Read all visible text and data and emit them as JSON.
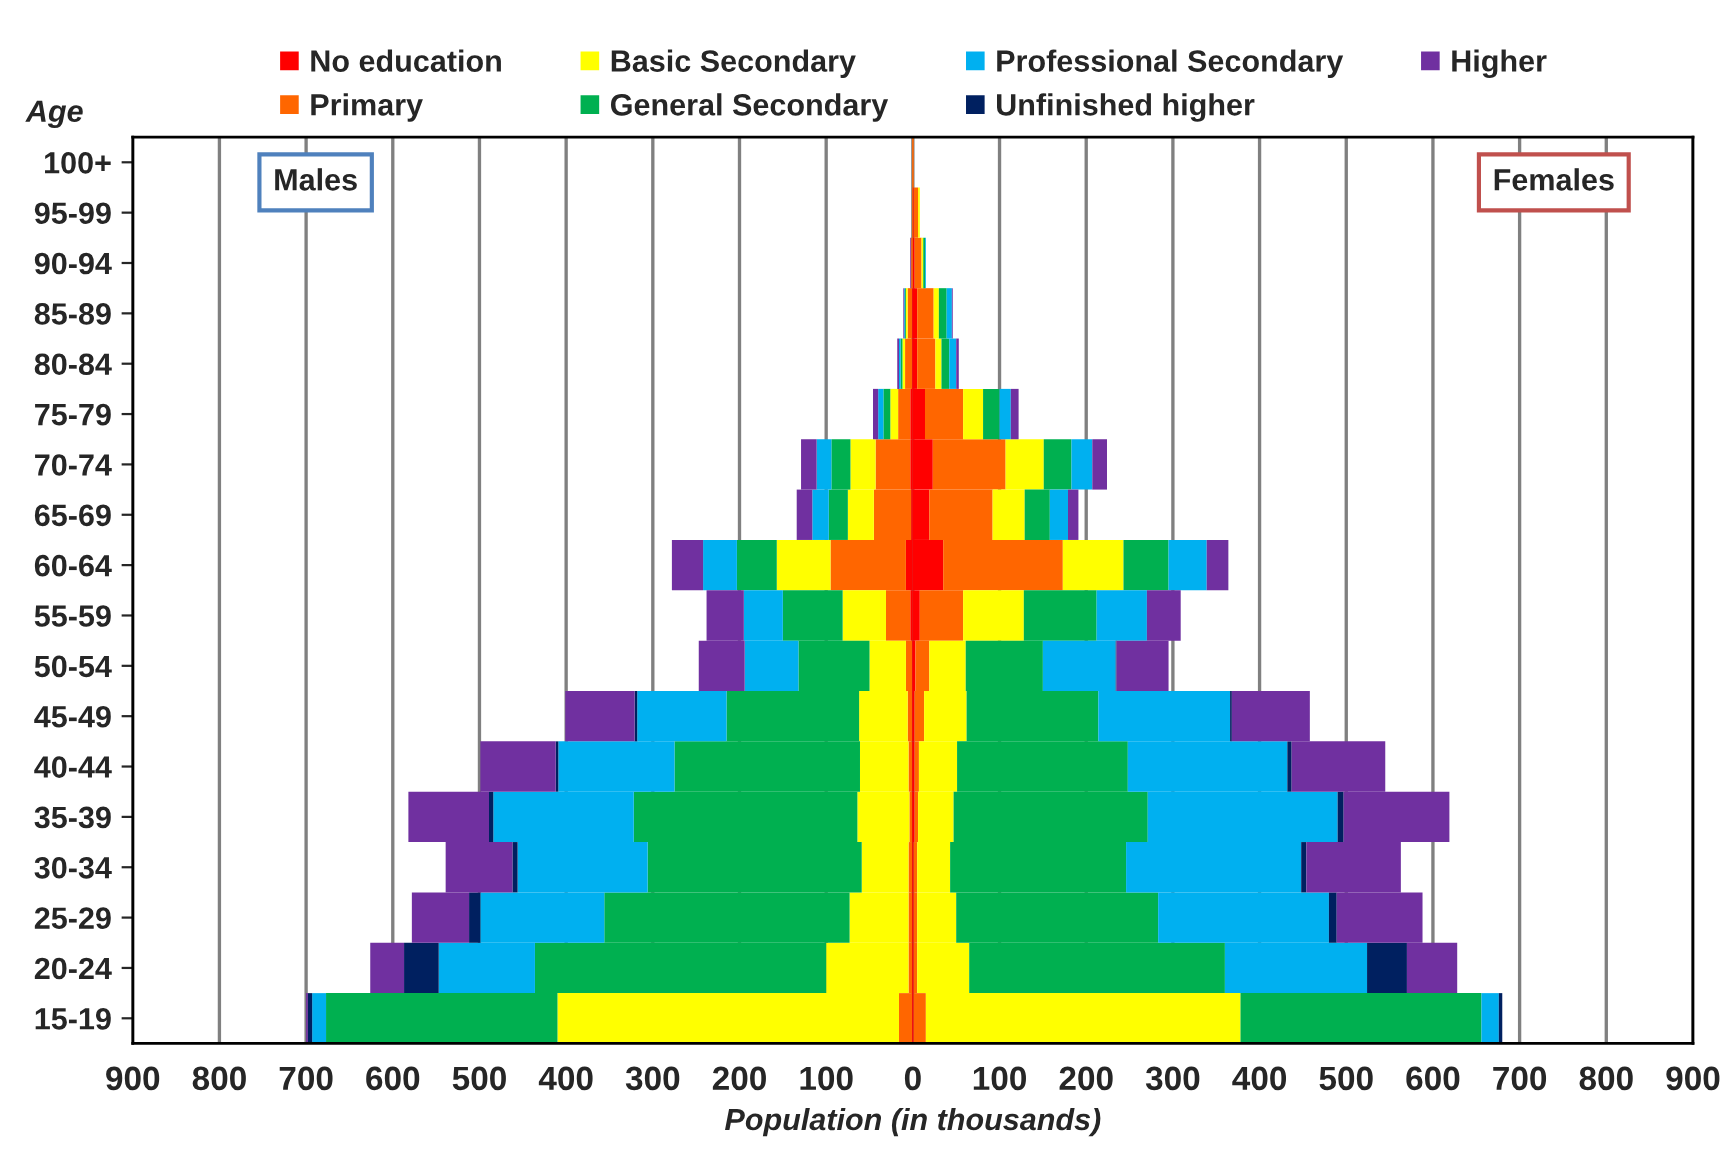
{
  "chart_data": {
    "type": "bar",
    "orientation": "horizontal",
    "stacked": true,
    "xlabel": "Population (in thousands)",
    "ylabel": "Age",
    "categories": [
      "100+",
      "95-99",
      "90-94",
      "85-89",
      "80-84",
      "75-79",
      "70-74",
      "65-69",
      "60-64",
      "55-59",
      "50-54",
      "45-49",
      "40-44",
      "35-39",
      "30-34",
      "25-29",
      "20-24",
      "15-19"
    ],
    "series": [
      {
        "name": "No education",
        "color": "#ff0000",
        "values": [
          0,
          0,
          0,
          -1,
          -1,
          -3,
          -3,
          -2,
          -8,
          -3,
          -1,
          -1,
          -1,
          -1,
          -1,
          -1,
          -1,
          -1
        ]
      },
      {
        "name": "Primary",
        "color": "#ff6600",
        "values": [
          -1,
          -1,
          -2,
          -5,
          -8,
          -14,
          -40,
          -43,
          -87,
          -28,
          -7,
          -5,
          -4,
          -3,
          -4,
          -4,
          -4,
          -15
        ]
      },
      {
        "name": "Basic Secondary",
        "color": "#ffff00",
        "values": [
          0,
          0,
          0,
          -2,
          -3,
          -9,
          -29,
          -30,
          -62,
          -50,
          -42,
          -56,
          -56,
          -60,
          -54,
          -68,
          -95,
          -394
        ]
      },
      {
        "name": "General Secondary",
        "color": "#00b050",
        "values": [
          0,
          0,
          0,
          -1,
          -2,
          -8,
          -22,
          -22,
          -46,
          -69,
          -82,
          -153,
          -214,
          -258,
          -247,
          -283,
          -336,
          -267
        ]
      },
      {
        "name": "Professional Secondary",
        "color": "#00b0f0",
        "values": [
          0,
          0,
          0,
          -1,
          -2,
          -6,
          -17,
          -19,
          -39,
          -45,
          -62,
          -103,
          -134,
          -162,
          -150,
          -143,
          -111,
          -16
        ]
      },
      {
        "name": "Unfinished higher",
        "color": "#002060",
        "values": [
          0,
          0,
          0,
          0,
          0,
          0,
          0,
          0,
          0,
          0,
          0,
          -3,
          -3,
          -5,
          -6,
          -13,
          -40,
          -5
        ]
      },
      {
        "name": "Higher",
        "color": "#7030a0",
        "values": [
          0,
          0,
          -1,
          -1,
          -2,
          -6,
          -18,
          -18,
          -36,
          -43,
          -53,
          -80,
          -87,
          -93,
          -77,
          -66,
          -39,
          -2
        ]
      },
      {
        "color": "#ff0000",
        "values": [
          0,
          1,
          2,
          5,
          5,
          14,
          23,
          19,
          35,
          8,
          3,
          2,
          2,
          2,
          1,
          1,
          1,
          1
        ]
      },
      {
        "color": "#ff6600",
        "values": [
          1,
          5,
          8,
          19,
          21,
          44,
          84,
          73,
          138,
          50,
          16,
          11,
          5,
          4,
          4,
          4,
          4,
          14
        ]
      },
      {
        "color": "#ffff00",
        "values": [
          0,
          2,
          2,
          6,
          7,
          23,
          44,
          37,
          70,
          70,
          42,
          49,
          44,
          41,
          38,
          45,
          60,
          363
        ]
      },
      {
        "color": "#00b050",
        "values": [
          0,
          0,
          2,
          9,
          9,
          19,
          32,
          29,
          52,
          84,
          89,
          152,
          197,
          224,
          203,
          233,
          295,
          278
        ]
      },
      {
        "color": "#00b0f0",
        "values": [
          0,
          0,
          1,
          6,
          8,
          13,
          24,
          21,
          44,
          58,
          84,
          152,
          184,
          219,
          202,
          197,
          164,
          20
        ]
      },
      {
        "color": "#002060",
        "values": [
          0,
          0,
          0,
          0,
          0,
          0,
          0,
          0,
          0,
          0,
          1,
          2,
          5,
          7,
          6,
          9,
          46,
          4
        ]
      },
      {
        "color": "#7030a0",
        "values": [
          0,
          0,
          0,
          1,
          3,
          9,
          17,
          12,
          25,
          39,
          60,
          90,
          108,
          122,
          109,
          99,
          58,
          0
        ]
      }
    ],
    "xlim": [
      -900,
      900
    ],
    "xticks": [
      {
        "value": -900,
        "label": "900"
      },
      {
        "value": -800,
        "label": "800"
      },
      {
        "value": -700,
        "label": "700"
      },
      {
        "value": -600,
        "label": "600"
      },
      {
        "value": -500,
        "label": "500"
      },
      {
        "value": -400,
        "label": "400"
      },
      {
        "value": -300,
        "label": "300"
      },
      {
        "value": -200,
        "label": "200"
      },
      {
        "value": -100,
        "label": "100"
      },
      0,
      100,
      200,
      300,
      400,
      500,
      600,
      700,
      800,
      900
    ],
    "annotations": [
      "Males",
      "Females"
    ],
    "grid": "x",
    "legend": "top"
  }
}
